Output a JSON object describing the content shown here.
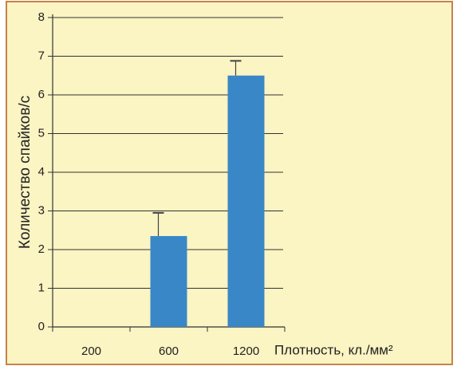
{
  "chart_data": {
    "type": "bar",
    "categories": [
      "200",
      "600",
      "1200"
    ],
    "values": [
      0,
      2.35,
      6.5
    ],
    "errors": [
      null,
      0.6,
      0.38
    ],
    "color": "#3a87c8",
    "y_label": "Количество спайков/с",
    "x_label": "Плотность, кл./мм²",
    "ylim": [
      0,
      8
    ],
    "yticks": [
      0,
      1,
      2,
      3,
      4,
      5,
      6,
      7,
      8
    ],
    "grid": true
  }
}
